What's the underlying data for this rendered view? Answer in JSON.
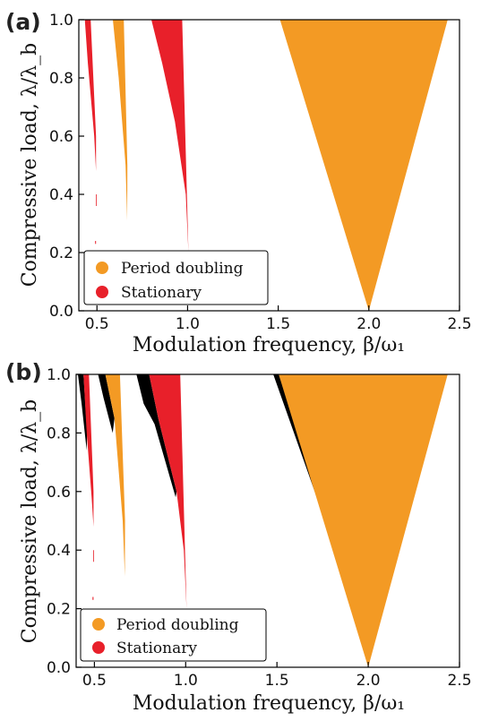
{
  "chart_data": [
    {
      "type": "area",
      "panel_label": "(a)",
      "xlabel": "Modulation frequency, β/ω₁",
      "ylabel": "Compressive load, λ/λ_b",
      "xlim": [
        0.4,
        2.5
      ],
      "ylim": [
        0.0,
        1.0
      ],
      "xticks": [
        {
          "v": 0.5,
          "label": "0.5"
        },
        {
          "v": 1.0,
          "label": "1.0"
        },
        {
          "v": 1.5,
          "label": "1.5"
        },
        {
          "v": 2.0,
          "label": "2.0"
        },
        {
          "v": 2.5,
          "label": "2.5"
        }
      ],
      "yticks": [
        {
          "v": 0.0,
          "label": "0.0"
        },
        {
          "v": 0.2,
          "label": "0.2"
        },
        {
          "v": 0.4,
          "label": "0.4"
        },
        {
          "v": 0.6,
          "label": "0.6"
        },
        {
          "v": 0.8,
          "label": "0.8"
        },
        {
          "v": 1.0,
          "label": "1.0"
        }
      ],
      "grid": false,
      "legend_position": "bottom-left",
      "legend": [
        {
          "label": "Period doubling",
          "color": "#f39a24"
        },
        {
          "label": "Stationary",
          "color": "#e8202a"
        }
      ],
      "regions": [
        {
          "series": "Stationary",
          "color": "#e8202a",
          "points": [
            [
              0.433,
              1.0
            ],
            [
              0.465,
              1.0
            ],
            [
              0.495,
              0.6
            ],
            [
              0.495,
              0.48
            ],
            [
              0.485,
              0.6
            ],
            [
              0.45,
              0.85
            ]
          ]
        },
        {
          "series": "Stationary",
          "color": "#e8202a",
          "points": [
            [
              0.494,
              0.36
            ],
            [
              0.498,
              0.36
            ],
            [
              0.498,
              0.4
            ],
            [
              0.494,
              0.4
            ]
          ]
        },
        {
          "series": "Stationary",
          "color": "#e8202a",
          "points": [
            [
              0.49,
              0.23
            ],
            [
              0.495,
              0.23
            ],
            [
              0.495,
              0.24
            ],
            [
              0.49,
              0.24
            ]
          ]
        },
        {
          "series": "Period doubling",
          "color": "#f39a24",
          "points": [
            [
              0.588,
              1.0
            ],
            [
              0.648,
              1.0
            ],
            [
              0.668,
              0.5
            ],
            [
              0.667,
              0.31
            ],
            [
              0.658,
              0.5
            ],
            [
              0.62,
              0.8
            ]
          ]
        },
        {
          "series": "Stationary",
          "color": "#e8202a",
          "points": [
            [
              0.8,
              1.0
            ],
            [
              0.97,
              1.0
            ],
            [
              1.005,
              0.2
            ],
            [
              0.99,
              0.4
            ],
            [
              0.93,
              0.65
            ],
            [
              0.86,
              0.85
            ]
          ]
        },
        {
          "series": "Period doubling",
          "color": "#f39a24",
          "points": [
            [
              1.51,
              1.0
            ],
            [
              2.435,
              1.0
            ],
            [
              2.0,
              0.0
            ]
          ]
        }
      ]
    },
    {
      "type": "area",
      "panel_label": "(b)",
      "xlabel": "Modulation frequency, β/ω₁",
      "ylabel": "Compressive load, λ/λ_b",
      "xlim": [
        0.4,
        2.5
      ],
      "ylim": [
        0.0,
        1.0
      ],
      "xticks": [
        {
          "v": 0.5,
          "label": "0.5"
        },
        {
          "v": 1.0,
          "label": "1.0"
        },
        {
          "v": 1.5,
          "label": "1.5"
        },
        {
          "v": 2.0,
          "label": "2.0"
        },
        {
          "v": 2.5,
          "label": "2.5"
        }
      ],
      "yticks": [
        {
          "v": 0.0,
          "label": "0.0"
        },
        {
          "v": 0.2,
          "label": "0.2"
        },
        {
          "v": 0.4,
          "label": "0.4"
        },
        {
          "v": 0.6,
          "label": "0.6"
        },
        {
          "v": 0.8,
          "label": "0.8"
        },
        {
          "v": 1.0,
          "label": "1.0"
        }
      ],
      "grid": false,
      "legend_position": "bottom-left",
      "legend": [
        {
          "label": "Period doubling",
          "color": "#f39a24"
        },
        {
          "label": "Stationary",
          "color": "#e8202a"
        }
      ],
      "regions": [
        {
          "series": "unlabeled",
          "color": "#000000",
          "points": [
            [
              0.41,
              1.0
            ],
            [
              0.44,
              1.0
            ],
            [
              0.46,
              0.8
            ],
            [
              0.458,
              0.74
            ],
            [
              0.43,
              0.9
            ]
          ]
        },
        {
          "series": "Stationary",
          "color": "#e8202a",
          "points": [
            [
              0.44,
              1.0
            ],
            [
              0.47,
              1.0
            ],
            [
              0.495,
              0.6
            ],
            [
              0.495,
              0.48
            ],
            [
              0.485,
              0.58
            ],
            [
              0.458,
              0.8
            ]
          ]
        },
        {
          "series": "Stationary",
          "color": "#e8202a",
          "points": [
            [
              0.494,
              0.36
            ],
            [
              0.498,
              0.36
            ],
            [
              0.498,
              0.4
            ],
            [
              0.494,
              0.4
            ]
          ]
        },
        {
          "series": "Stationary",
          "color": "#e8202a",
          "points": [
            [
              0.49,
              0.23
            ],
            [
              0.495,
              0.23
            ],
            [
              0.495,
              0.24
            ],
            [
              0.49,
              0.24
            ]
          ]
        },
        {
          "series": "unlabeled",
          "color": "#000000",
          "points": [
            [
              0.52,
              1.0
            ],
            [
              0.56,
              1.0
            ],
            [
              0.61,
              0.85
            ],
            [
              0.6,
              0.8
            ],
            [
              0.55,
              0.92
            ]
          ]
        },
        {
          "series": "Period doubling",
          "color": "#f39a24",
          "points": [
            [
              0.56,
              1.0
            ],
            [
              0.64,
              1.0
            ],
            [
              0.668,
              0.5
            ],
            [
              0.667,
              0.31
            ],
            [
              0.655,
              0.5
            ],
            [
              0.61,
              0.85
            ]
          ]
        },
        {
          "series": "unlabeled",
          "color": "#000000",
          "points": [
            [
              0.73,
              1.0
            ],
            [
              0.8,
              1.0
            ],
            [
              0.85,
              0.85
            ],
            [
              0.95,
              0.6
            ],
            [
              0.945,
              0.58
            ],
            [
              0.83,
              0.83
            ],
            [
              0.77,
              0.9
            ]
          ]
        },
        {
          "series": "Stationary",
          "color": "#e8202a",
          "points": [
            [
              0.8,
              1.0
            ],
            [
              0.97,
              1.0
            ],
            [
              1.005,
              0.2
            ],
            [
              0.99,
              0.4
            ],
            [
              0.95,
              0.6
            ],
            [
              0.85,
              0.85
            ]
          ]
        },
        {
          "series": "unlabeled",
          "color": "#000000",
          "points": [
            [
              1.48,
              1.0
            ],
            [
              1.51,
              1.0
            ],
            [
              1.78,
              0.5
            ],
            [
              1.775,
              0.48
            ]
          ]
        },
        {
          "series": "Period doubling",
          "color": "#f39a24",
          "points": [
            [
              1.51,
              1.0
            ],
            [
              2.435,
              1.0
            ],
            [
              2.0,
              0.0
            ]
          ]
        }
      ]
    }
  ]
}
